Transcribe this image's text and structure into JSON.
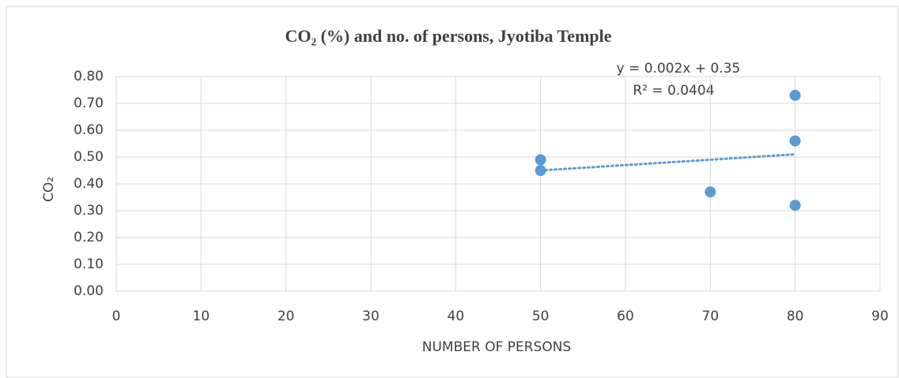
{
  "chart_data": {
    "type": "scatter",
    "title": "CO₂ (%) and no. of persons, Jyotiba Temple",
    "xlabel": "NUMBER OF PERSONS",
    "ylabel": "CO₂",
    "series": [
      {
        "color": "#5b9bd5",
        "x": [
          50,
          50,
          70,
          80,
          80,
          80
        ],
        "values": [
          0.49,
          0.45,
          0.37,
          0.73,
          0.56,
          0.32
        ]
      }
    ],
    "trendline": {
      "x": [
        50,
        80
      ],
      "values": [
        0.45,
        0.51
      ],
      "color": "#5b9bd5",
      "equation": "y = 0.002x + 0.35",
      "r2": "R² = 0.0404"
    },
    "xlim": [
      0,
      90
    ],
    "xticks": [
      0,
      10,
      20,
      30,
      40,
      50,
      60,
      70,
      80,
      90
    ],
    "ylim": [
      0,
      0.8
    ],
    "yticks": [
      {
        "value": 0,
        "label": "0.00"
      },
      {
        "value": 0.1,
        "label": "0.10"
      },
      {
        "value": 0.2,
        "label": "0.20"
      },
      {
        "value": 0.3,
        "label": "0.30"
      },
      {
        "value": 0.4,
        "label": "0.40"
      },
      {
        "value": 0.5,
        "label": "0.50"
      },
      {
        "value": 0.6,
        "label": "0.60"
      },
      {
        "value": 0.7,
        "label": "0.70"
      },
      {
        "value": 0.8,
        "label": "0.80"
      }
    ],
    "grid": true
  }
}
